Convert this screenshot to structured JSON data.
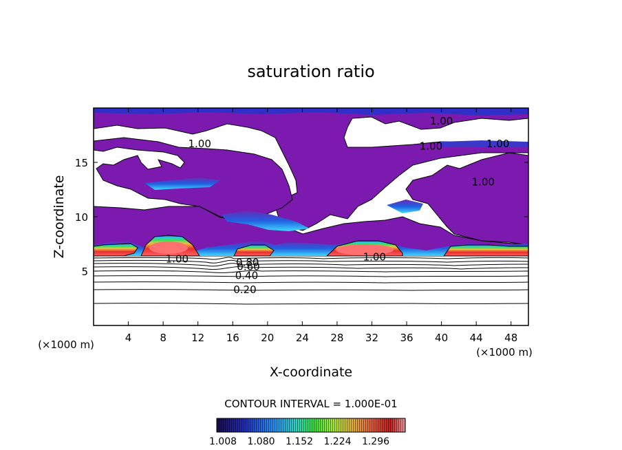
{
  "chart_data": {
    "type": "heatmap",
    "title": "saturation ratio",
    "xlabel": "X-coordinate",
    "ylabel": "Z-coordinate",
    "x_unit": "(×1000 m)",
    "x_unit_right": "(×1000 m)",
    "xlim": [
      0,
      50
    ],
    "ylim": [
      0,
      20
    ],
    "x_ticks": [
      4,
      8,
      12,
      16,
      20,
      24,
      28,
      32,
      36,
      40,
      44,
      48
    ],
    "y_ticks": [
      5,
      10,
      15
    ],
    "contour_interval_text": "CONTOUR INTERVAL = 1.000E-01",
    "colorbar": {
      "ticks": [
        "1.008",
        "1.080",
        "1.152",
        "1.224",
        "1.296"
      ],
      "colors": [
        "#1a0a4a",
        "#2230b8",
        "#2c8cf0",
        "#30d0c0",
        "#40e040",
        "#a8e840",
        "#e0b040",
        "#e06040",
        "#c02020",
        "#f0a0a0"
      ]
    },
    "contour_labels": [
      {
        "text": "1.00",
        "x": 40,
        "z": 18.8
      },
      {
        "text": "1.00",
        "x": 12.2,
        "z": 16.7
      },
      {
        "text": "1.00",
        "x": 38.8,
        "z": 16.5
      },
      {
        "text": "1.00",
        "x": 46.5,
        "z": 16.7
      },
      {
        "text": "1.00",
        "x": 44.8,
        "z": 13.2
      },
      {
        "text": "1.00",
        "x": 9.6,
        "z": 6.1
      },
      {
        "text": "1.00",
        "x": 32.3,
        "z": 6.3
      },
      {
        "text": "0.80",
        "x": 17.7,
        "z": 5.8
      },
      {
        "text": "0.60",
        "x": 17.8,
        "z": 5.4
      },
      {
        "text": "0.40",
        "x": 17.6,
        "z": 4.6
      },
      {
        "text": "0.20",
        "x": 17.4,
        "z": 3.3
      }
    ],
    "isolines_below": [
      0.2,
      0.4,
      0.6,
      0.8
    ],
    "cloud_regions": [
      {
        "x0": 0,
        "x1": 5.5,
        "z_mean": 7.0,
        "peak": 1.1
      },
      {
        "x0": 5.5,
        "x1": 12.5,
        "z_mean": 7.0,
        "peak": 1.3
      },
      {
        "x0": 16.5,
        "x1": 21,
        "z_mean": 7.0,
        "peak": 1.3
      },
      {
        "x0": 27,
        "x1": 35.5,
        "z_mean": 7.0,
        "peak": 1.3
      },
      {
        "x0": 40.5,
        "x1": 50,
        "z_mean": 7.0,
        "peak": 1.25
      }
    ]
  }
}
